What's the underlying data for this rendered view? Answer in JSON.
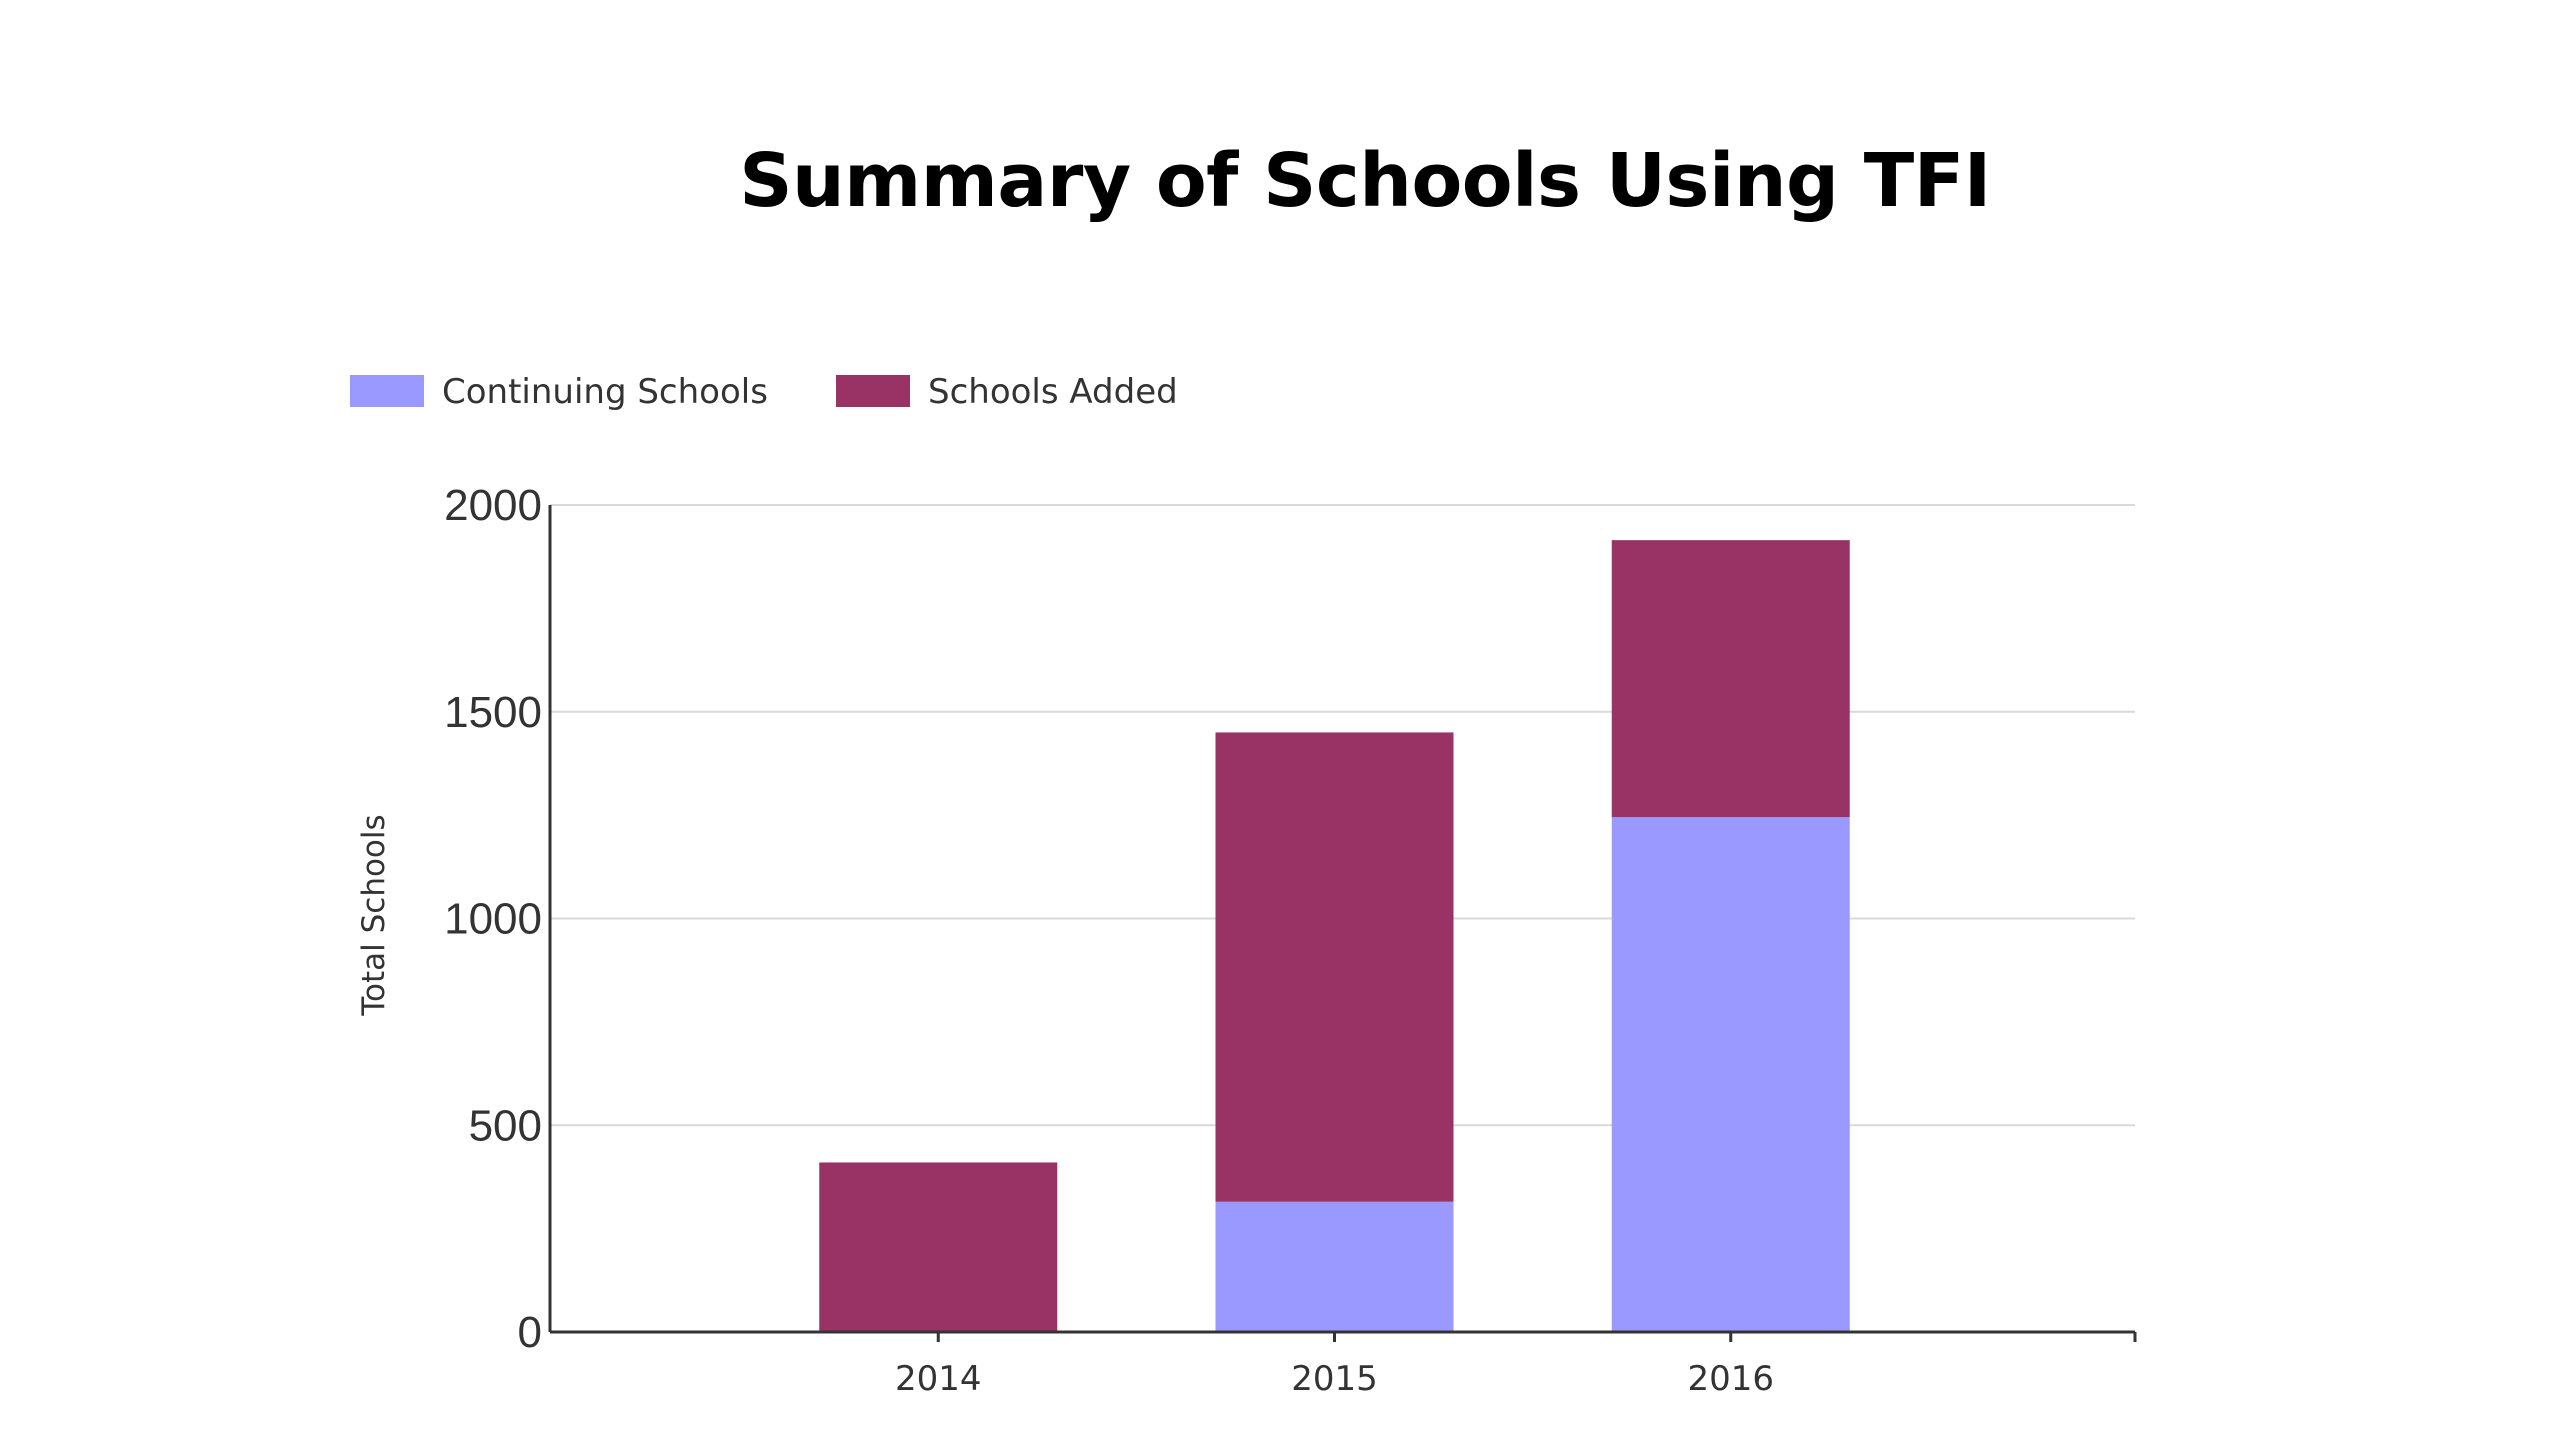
{
  "chart_data": {
    "type": "bar",
    "stacked": true,
    "title": "Summary of Schools Using TFI",
    "xlabel": "",
    "ylabel": "Total Schools",
    "categories": [
      "2014",
      "2015",
      "2016"
    ],
    "series": [
      {
        "name": "Continuing Schools",
        "values": [
          0,
          315,
          1245
        ],
        "color": "#9999ff"
      },
      {
        "name": "Schools Added",
        "values": [
          410,
          1135,
          670
        ],
        "color": "#993366"
      }
    ],
    "ylim": [
      0,
      2000
    ],
    "yticks": [
      0,
      500,
      1000,
      1500,
      2000
    ],
    "grid": true,
    "legend_position": "top-left"
  }
}
